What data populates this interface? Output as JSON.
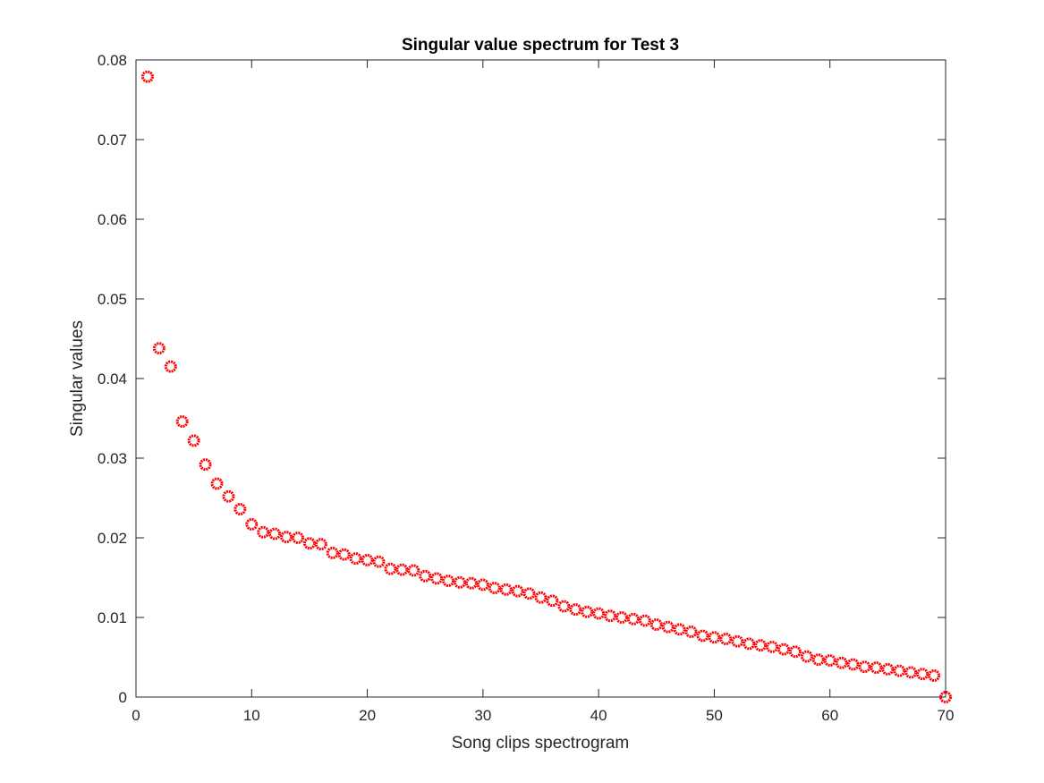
{
  "chart_data": {
    "type": "scatter",
    "title": "Singular value spectrum for Test 3",
    "xlabel": "Song clips spectrogram",
    "ylabel": "Singular values",
    "xlim": [
      0,
      70
    ],
    "ylim": [
      0,
      0.08
    ],
    "xticks": [
      0,
      10,
      20,
      30,
      40,
      50,
      60,
      70
    ],
    "yticks": [
      0,
      0.01,
      0.02,
      0.03,
      0.04,
      0.05,
      0.06,
      0.07,
      0.08
    ],
    "xtick_labels": [
      "0",
      "10",
      "20",
      "30",
      "40",
      "50",
      "60",
      "70"
    ],
    "ytick_labels": [
      "0",
      "0.01",
      "0.02",
      "0.03",
      "0.04",
      "0.05",
      "0.06",
      "0.07",
      "0.08"
    ],
    "grid": false,
    "box": true,
    "marker": "circle",
    "marker_color": "#ff0000",
    "series": [
      {
        "x": [
          1,
          2,
          3,
          4,
          5,
          6,
          7,
          8,
          9,
          10,
          11,
          12,
          13,
          14,
          15,
          16,
          17,
          18,
          19,
          20,
          21,
          22,
          23,
          24,
          25,
          26,
          27,
          28,
          29,
          30,
          31,
          32,
          33,
          34,
          35,
          36,
          37,
          38,
          39,
          40,
          41,
          42,
          43,
          44,
          45,
          46,
          47,
          48,
          49,
          50,
          51,
          52,
          53,
          54,
          55,
          56,
          57,
          58,
          59,
          60,
          61,
          62,
          63,
          64,
          65,
          66,
          67,
          68,
          69,
          70
        ],
        "values": [
          0.0779,
          0.0438,
          0.0415,
          0.0346,
          0.0322,
          0.0292,
          0.0268,
          0.0252,
          0.0236,
          0.0217,
          0.0207,
          0.0205,
          0.0201,
          0.02,
          0.0193,
          0.0192,
          0.0181,
          0.0179,
          0.0174,
          0.0172,
          0.017,
          0.0161,
          0.016,
          0.0159,
          0.0152,
          0.0149,
          0.0146,
          0.0144,
          0.0143,
          0.0141,
          0.0137,
          0.0135,
          0.0133,
          0.013,
          0.0125,
          0.0121,
          0.0114,
          0.011,
          0.0107,
          0.0105,
          0.0102,
          0.01,
          0.0098,
          0.0096,
          0.0091,
          0.0088,
          0.0085,
          0.0082,
          0.0077,
          0.0075,
          0.0073,
          0.007,
          0.0067,
          0.0065,
          0.0063,
          0.006,
          0.0057,
          0.0051,
          0.0047,
          0.0046,
          0.0043,
          0.0041,
          0.0038,
          0.0037,
          0.0035,
          0.0033,
          0.0031,
          0.0029,
          0.0027,
          0.0
        ]
      }
    ]
  }
}
